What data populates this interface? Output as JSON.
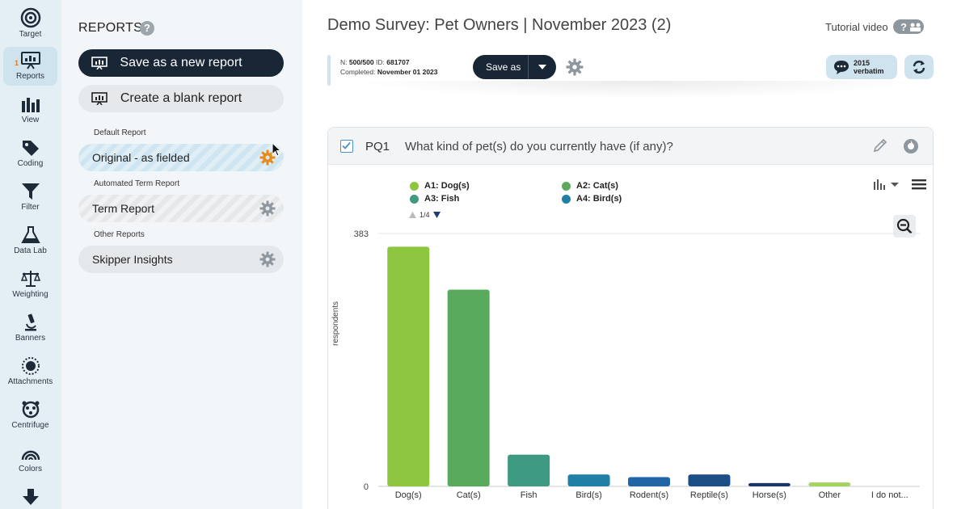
{
  "rail": {
    "items": [
      {
        "label": "Target",
        "icon": "target-icon"
      },
      {
        "label": "Reports",
        "icon": "reports-icon",
        "badge": "1"
      },
      {
        "label": "View",
        "icon": "bar-chart-icon"
      },
      {
        "label": "Coding",
        "icon": "tag-icon"
      },
      {
        "label": "Filter",
        "icon": "filter-icon"
      },
      {
        "label": "Data Lab",
        "icon": "flask-icon"
      },
      {
        "label": "Weighting",
        "icon": "scale-icon"
      },
      {
        "label": "Banners",
        "icon": "microscope-icon"
      },
      {
        "label": "Attachments",
        "icon": "sun-icon"
      },
      {
        "label": "Centrifuge",
        "icon": "centrifuge-icon"
      },
      {
        "label": "Colors",
        "icon": "rainbow-icon"
      },
      {
        "label": "",
        "icon": "arrow-down-icon"
      }
    ]
  },
  "panel": {
    "title": "REPORTS",
    "help": "?",
    "save_new_label": "Save as a new report",
    "blank_label": "Create a blank report",
    "sections": {
      "default": "Default Report",
      "automated": "Automated Term Report",
      "other": "Other Reports"
    },
    "reports": {
      "original": "Original - as fielded",
      "term": "Term Report",
      "skipper": "Skipper Insights"
    }
  },
  "header": {
    "title": "Demo Survey: Pet Owners | November 2023 (2)",
    "tutorial": "Tutorial video",
    "info": {
      "n_label": "N:",
      "n_value": "500/500",
      "id_label": "ID:",
      "id_value": "681707",
      "completed_label": "Completed:",
      "completed_value": "November 01 2023"
    },
    "save_as": "Save as",
    "verbatim_count": "2015",
    "verbatim_label": "verbatim"
  },
  "question": {
    "code": "PQ1",
    "text": "What kind of pet(s) do you currently have (if any)?",
    "legend": [
      {
        "label": "A1: Dog(s)",
        "color": "#8dc63f"
      },
      {
        "label": "A2: Cat(s)",
        "color": "#5aaa5e"
      },
      {
        "label": "A3: Fish",
        "color": "#3e9a82"
      },
      {
        "label": "A4: Bird(s)",
        "color": "#1f7fa6"
      }
    ],
    "legend_page": "1/4"
  },
  "chart_data": {
    "type": "bar",
    "categories": [
      "Dog(s)",
      "Cat(s)",
      "Fish",
      "Bird(s)",
      "Rodent(s)",
      "Reptile(s)",
      "Horse(s)",
      "Other",
      "I do not..."
    ],
    "values": [
      363,
      298,
      48,
      18,
      14,
      18,
      5,
      6,
      0
    ],
    "colors": [
      "#8dc63f",
      "#5aaa5e",
      "#3e9a82",
      "#1f7fa6",
      "#2165a7",
      "#1c4f86",
      "#173866",
      "#a5d35f",
      "#cccccc"
    ],
    "ylabel": "respondents",
    "ylim": [
      0,
      383
    ],
    "yticks": [
      "0",
      "383"
    ],
    "grid": true
  }
}
